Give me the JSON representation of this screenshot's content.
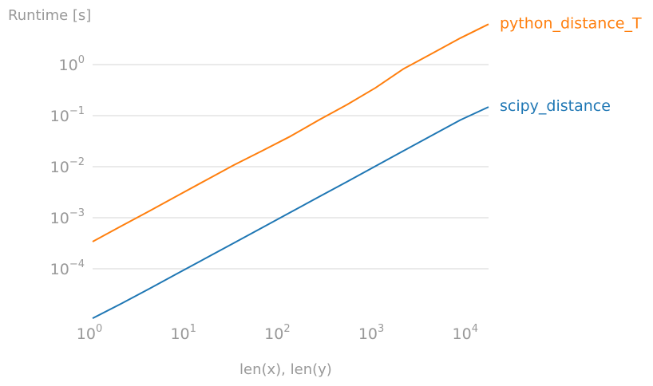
{
  "chart_data": {
    "type": "line",
    "title": "",
    "ylabel": "Runtime [s]",
    "xlabel": "len(x), len(y)",
    "xscale": "log",
    "yscale": "log",
    "xlim": [
      1,
      16384
    ],
    "ylim": [
      1e-05,
      10
    ],
    "grid": "horizontal",
    "legend": "inline labels at right end of lines",
    "x_ticks": [
      {
        "base": "10",
        "exp": "0"
      },
      {
        "base": "10",
        "exp": "1"
      },
      {
        "base": "10",
        "exp": "2"
      },
      {
        "base": "10",
        "exp": "3"
      },
      {
        "base": "10",
        "exp": "4"
      }
    ],
    "y_ticks": [
      {
        "base": "10",
        "exp": "0"
      },
      {
        "base": "10",
        "exp": "−1"
      },
      {
        "base": "10",
        "exp": "−2"
      },
      {
        "base": "10",
        "exp": "−3"
      },
      {
        "base": "10",
        "exp": "−4"
      }
    ],
    "series": [
      {
        "name": "python_distance_T",
        "color": "#ff7f0e",
        "x": [
          1,
          2,
          4,
          8,
          16,
          32,
          64,
          128,
          256,
          512,
          1024,
          2048,
          4096,
          8192,
          16384
        ],
        "y": [
          0.00034,
          0.00068,
          0.00135,
          0.0027,
          0.0054,
          0.0108,
          0.0205,
          0.0395,
          0.082,
          0.165,
          0.35,
          0.83,
          1.65,
          3.3,
          6.2
        ]
      },
      {
        "name": "scipy_distance",
        "color": "#1f77b4",
        "x": [
          1,
          2,
          4,
          8,
          16,
          32,
          64,
          128,
          256,
          512,
          1024,
          2048,
          4096,
          8192,
          16384
        ],
        "y": [
          1.07e-05,
          2.05e-05,
          4.05e-05,
          8.1e-05,
          0.000161,
          0.000321,
          0.00064,
          0.00128,
          0.00256,
          0.0051,
          0.0102,
          0.0205,
          0.041,
          0.082,
          0.148
        ]
      }
    ]
  }
}
